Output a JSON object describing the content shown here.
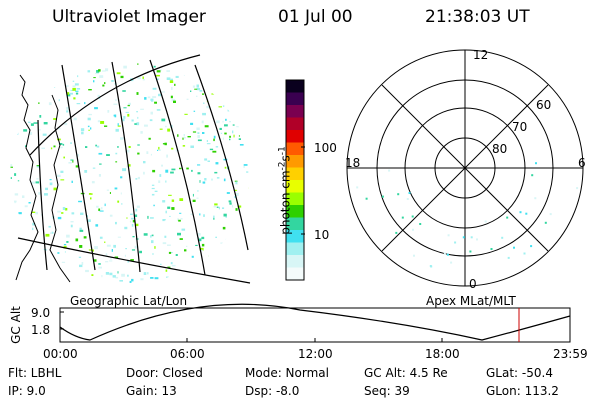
{
  "header": {
    "instrument": "Ultraviolet Imager",
    "date": "01 Jul 00",
    "time": "21:38:03 UT"
  },
  "colorbar": {
    "unit_label": "photon cm",
    "unit_exp1": "-2",
    "unit_mid": "s",
    "unit_exp2": "-1",
    "tick_100": "100",
    "tick_10": "10",
    "colors": [
      "#0a001e",
      "#3a0050",
      "#7a0050",
      "#b00028",
      "#e00000",
      "#ff5a00",
      "#ff9a00",
      "#ffd000",
      "#e8ff00",
      "#9aff00",
      "#2ed000",
      "#33d6a0",
      "#40e0f0",
      "#a0f0f0",
      "#d8f6f6",
      "#f4fbfb"
    ]
  },
  "left_map": {
    "caption": "Geographic Lat/Lon"
  },
  "right_map": {
    "caption": "Apex MLat/MLT",
    "mlt_12": "12",
    "mlt_18": "18",
    "mlt_6": "6",
    "mlt_0": "0",
    "lat_60": "60",
    "lat_70": "70",
    "lat_80": "80"
  },
  "timeline": {
    "ylabel": "GC Alt",
    "y_top": "9.0",
    "y_bottom": "1.8",
    "x_labels": [
      "00:00",
      "06:00",
      "12:00",
      "18:00",
      "23:59"
    ],
    "marker_time": "21:38",
    "marker_color": "#cc0000"
  },
  "footer": {
    "flt": "Flt: LBHL",
    "ip": "IP:  9.0",
    "door": "Door: Closed",
    "gain": "Gain: 13",
    "mode": "Mode: Normal",
    "dsp": "Dsp:    -8.0",
    "gcalt": "GC Alt: 4.5 Re",
    "seq": "Seq: 39",
    "glat": "GLat: -50.4",
    "glon": "GLon: 113.2"
  }
}
